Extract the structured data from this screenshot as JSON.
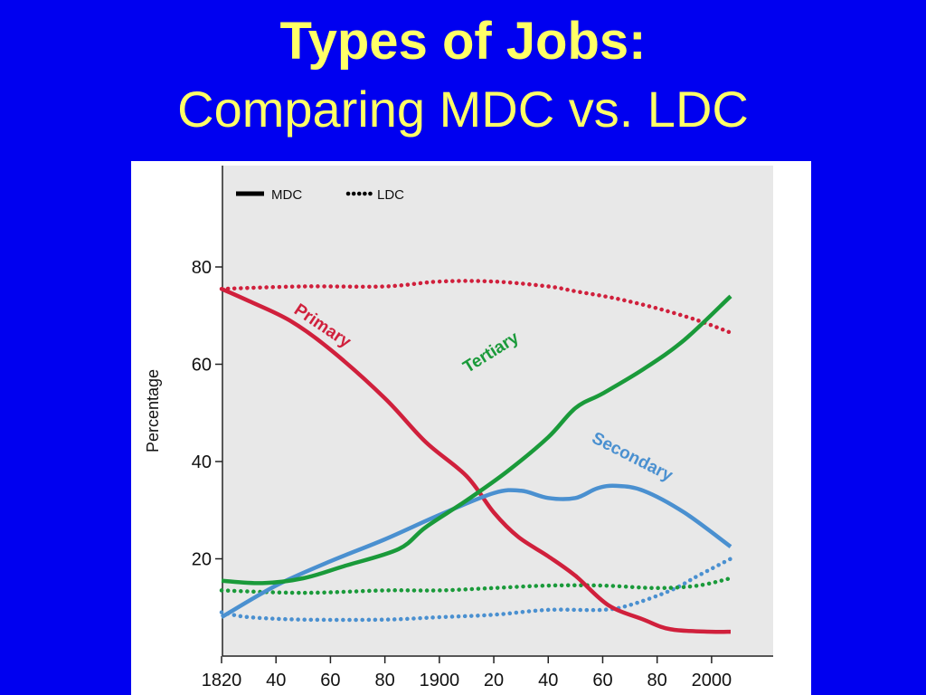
{
  "slide": {
    "title": "Types of Jobs:",
    "subtitle": "Comparing MDC vs. LDC"
  },
  "colors": {
    "background": "#0000f0",
    "title": "#ffff66",
    "plot_background": "#e8e8e8",
    "primary": "#d0203c",
    "secondary": "#4a90d0",
    "tertiary": "#1a9a3a"
  },
  "chart_data": {
    "type": "line",
    "title": "",
    "xlabel": "",
    "ylabel": "Percentage",
    "xlim": [
      1820,
      2010
    ],
    "ylim": [
      0,
      95
    ],
    "grid": false,
    "legend_position": "top-left",
    "legend": [
      {
        "label": "MDC",
        "style": "solid"
      },
      {
        "label": "LDC",
        "style": "dotted"
      }
    ],
    "x_ticks": [
      1820,
      1840,
      1860,
      1880,
      1900,
      1920,
      1940,
      1960,
      1980,
      2000
    ],
    "x_tick_labels": [
      "1820",
      "40",
      "60",
      "80",
      "1900",
      "20",
      "40",
      "60",
      "80",
      "2000"
    ],
    "y_ticks": [
      20,
      40,
      60,
      80
    ],
    "y_tick_labels": [
      "20",
      "40",
      "60",
      "80"
    ],
    "series": [
      {
        "name": "Primary",
        "group": "MDC",
        "style": "solid",
        "color": "#d0203c",
        "points": [
          [
            1820,
            75.5
          ],
          [
            1830,
            73
          ],
          [
            1845,
            69
          ],
          [
            1860,
            63
          ],
          [
            1880,
            53
          ],
          [
            1895,
            44
          ],
          [
            1910,
            37
          ],
          [
            1920,
            29.5
          ],
          [
            1929,
            24.5
          ],
          [
            1940,
            20.5
          ],
          [
            1950,
            16.5
          ],
          [
            1962,
            10.5
          ],
          [
            1975,
            7.5
          ],
          [
            1985,
            5.5
          ],
          [
            2000,
            5
          ],
          [
            2007,
            5
          ]
        ]
      },
      {
        "name": "Secondary",
        "group": "MDC",
        "style": "solid",
        "color": "#4a90d0",
        "points": [
          [
            1820,
            8
          ],
          [
            1840,
            14.5
          ],
          [
            1860,
            19.5
          ],
          [
            1880,
            24
          ],
          [
            1900,
            29
          ],
          [
            1920,
            33.5
          ],
          [
            1930,
            34
          ],
          [
            1940,
            32.5
          ],
          [
            1950,
            32.5
          ],
          [
            1958,
            34.5
          ],
          [
            1965,
            35
          ],
          [
            1975,
            34
          ],
          [
            1990,
            29.5
          ],
          [
            2007,
            22.5
          ]
        ]
      },
      {
        "name": "Tertiary",
        "group": "MDC",
        "style": "solid",
        "color": "#1a9a3a",
        "points": [
          [
            1820,
            15.5
          ],
          [
            1835,
            15
          ],
          [
            1850,
            16
          ],
          [
            1865,
            18.5
          ],
          [
            1885,
            22
          ],
          [
            1895,
            26.5
          ],
          [
            1910,
            32
          ],
          [
            1925,
            38
          ],
          [
            1940,
            45
          ],
          [
            1950,
            51
          ],
          [
            1960,
            54
          ],
          [
            1975,
            59
          ],
          [
            1990,
            65
          ],
          [
            2007,
            74
          ]
        ]
      },
      {
        "name": "Primary",
        "group": "LDC",
        "style": "dotted",
        "color": "#d0203c",
        "points": [
          [
            1820,
            75.5
          ],
          [
            1850,
            76
          ],
          [
            1880,
            76
          ],
          [
            1900,
            77
          ],
          [
            1920,
            77
          ],
          [
            1940,
            76
          ],
          [
            1950,
            75
          ],
          [
            1965,
            73.5
          ],
          [
            1980,
            71.5
          ],
          [
            1995,
            69
          ],
          [
            2007,
            66.5
          ]
        ]
      },
      {
        "name": "Secondary",
        "group": "LDC",
        "style": "dotted",
        "color": "#4a90d0",
        "points": [
          [
            1820,
            9
          ],
          [
            1830,
            8
          ],
          [
            1850,
            7.5
          ],
          [
            1880,
            7.5
          ],
          [
            1900,
            8
          ],
          [
            1920,
            8.5
          ],
          [
            1940,
            9.5
          ],
          [
            1960,
            9.5
          ],
          [
            1970,
            10.5
          ],
          [
            1985,
            13.5
          ],
          [
            1995,
            16.5
          ],
          [
            2007,
            20
          ]
        ]
      },
      {
        "name": "Tertiary",
        "group": "LDC",
        "style": "dotted",
        "color": "#1a9a3a",
        "points": [
          [
            1820,
            13.5
          ],
          [
            1850,
            13
          ],
          [
            1880,
            13.5
          ],
          [
            1900,
            13.5
          ],
          [
            1920,
            14
          ],
          [
            1940,
            14.5
          ],
          [
            1960,
            14.5
          ],
          [
            1980,
            14
          ],
          [
            1995,
            14.5
          ],
          [
            2007,
            16
          ]
        ]
      }
    ],
    "annotations": [
      {
        "text": "Primary",
        "color": "#d0203c",
        "x": 1856,
        "y": 67,
        "angle": 34
      },
      {
        "text": "Tertiary",
        "color": "#1a9a3a",
        "x": 1920,
        "y": 61.5,
        "angle": -32
      },
      {
        "text": "Secondary",
        "color": "#4a90d0",
        "x": 1970,
        "y": 40,
        "angle": 27
      }
    ]
  }
}
